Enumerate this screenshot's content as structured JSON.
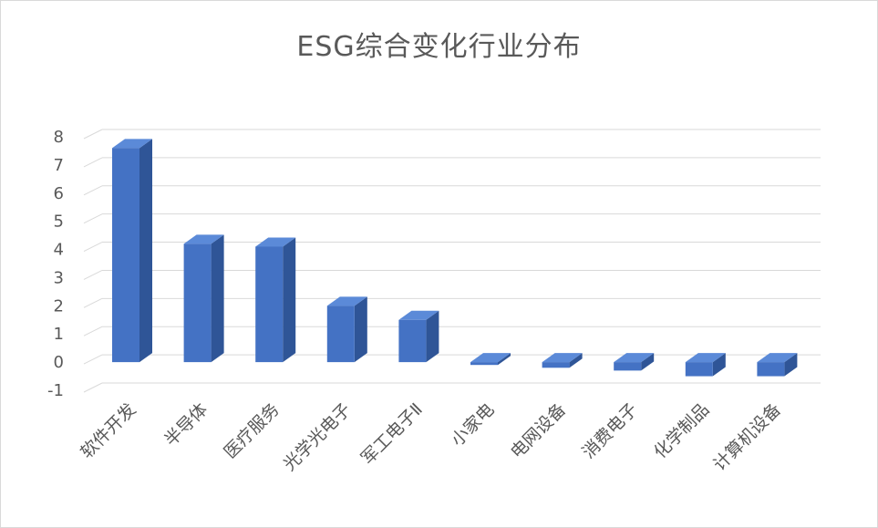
{
  "chart_data": {
    "type": "bar",
    "title": "ESG综合变化行业分布",
    "categories": [
      "软件开发",
      "半导体",
      "医疗服务",
      "光学光电子",
      "军工电子Ⅱ",
      "小家电",
      "电网设备",
      "消费电子",
      "化学制品",
      "计算机设备"
    ],
    "values": [
      7.6,
      4.2,
      4.1,
      2.0,
      1.5,
      -0.1,
      -0.2,
      -0.3,
      -0.5,
      -0.5
    ],
    "ylim": [
      -1,
      8
    ],
    "yticks": [
      -1,
      0,
      1,
      2,
      3,
      4,
      5,
      6,
      7,
      8
    ],
    "grid": true,
    "legend": "none",
    "bar_color": "#4472C4",
    "bar_side_color": "#2F5597",
    "bar_top_color": "#5B8AD8"
  }
}
